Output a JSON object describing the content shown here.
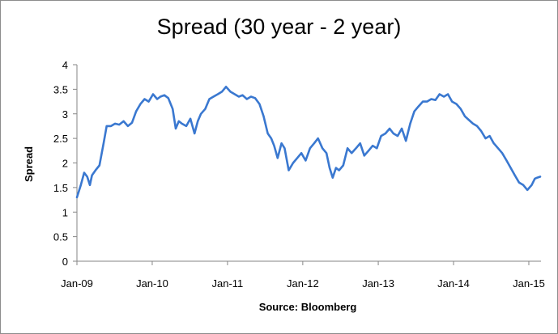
{
  "chart_data": {
    "type": "line",
    "title": "Spread (30 year - 2 year)",
    "xlabel": "Source: Bloomberg",
    "ylabel": "Spread",
    "x_tick_labels": [
      "Jan-09",
      "Jan-10",
      "Jan-11",
      "Jan-12",
      "Jan-13",
      "Jan-14",
      "Jan-15"
    ],
    "y_tick_labels": [
      "0",
      "0.5",
      "1",
      "1.5",
      "2",
      "2.5",
      "3",
      "3.5",
      "4"
    ],
    "ylim": [
      0,
      4
    ],
    "xlim": [
      "2009-01",
      "2015-03"
    ],
    "grid": false,
    "legend": "none",
    "series_color": "#3a78d0",
    "series": [
      {
        "x": [
          "2009-01-01",
          "2009-01-20",
          "2009-02-05",
          "2009-02-20",
          "2009-03-05",
          "2009-03-15",
          "2009-04-01",
          "2009-04-20",
          "2009-05-10",
          "2009-05-25",
          "2009-06-15",
          "2009-07-05",
          "2009-07-25",
          "2009-08-15",
          "2009-09-05",
          "2009-09-25",
          "2009-10-15",
          "2009-11-05",
          "2009-11-25",
          "2009-12-15",
          "2010-01-05",
          "2010-01-25",
          "2010-02-10",
          "2010-03-01",
          "2010-03-20",
          "2010-04-10",
          "2010-04-25",
          "2010-05-10",
          "2010-05-25",
          "2010-06-15",
          "2010-07-05",
          "2010-07-25",
          "2010-08-10",
          "2010-08-25",
          "2010-09-15",
          "2010-10-05",
          "2010-10-25",
          "2010-11-15",
          "2010-12-05",
          "2010-12-25",
          "2011-01-15",
          "2011-02-05",
          "2011-02-25",
          "2011-03-15",
          "2011-04-05",
          "2011-04-25",
          "2011-05-15",
          "2011-06-05",
          "2011-06-25",
          "2011-07-15",
          "2011-08-01",
          "2011-08-15",
          "2011-09-01",
          "2011-09-20",
          "2011-10-05",
          "2011-10-25",
          "2011-11-15",
          "2011-12-05",
          "2011-12-25",
          "2012-01-15",
          "2012-02-05",
          "2012-02-25",
          "2012-03-15",
          "2012-04-05",
          "2012-04-25",
          "2012-05-10",
          "2012-05-25",
          "2012-06-10",
          "2012-06-25",
          "2012-07-15",
          "2012-08-05",
          "2012-08-25",
          "2012-09-15",
          "2012-10-05",
          "2012-10-25",
          "2012-11-15",
          "2012-12-05",
          "2012-12-25",
          "2013-01-15",
          "2013-02-05",
          "2013-02-25",
          "2013-03-15",
          "2013-04-05",
          "2013-04-25",
          "2013-05-15",
          "2013-06-05",
          "2013-06-25",
          "2013-07-15",
          "2013-08-05",
          "2013-08-25",
          "2013-09-15",
          "2013-10-05",
          "2013-10-25",
          "2013-11-15",
          "2013-12-05",
          "2013-12-25",
          "2014-01-15",
          "2014-02-05",
          "2014-02-25",
          "2014-03-15",
          "2014-04-05",
          "2014-04-25",
          "2014-05-15",
          "2014-06-05",
          "2014-06-25",
          "2014-07-15",
          "2014-08-05",
          "2014-08-25",
          "2014-09-15",
          "2014-10-05",
          "2014-10-25",
          "2014-11-15",
          "2014-12-05",
          "2014-12-25",
          "2015-01-15",
          "2015-01-30",
          "2015-02-10",
          "2015-02-25"
        ],
        "values": [
          1.3,
          1.55,
          1.8,
          1.72,
          1.55,
          1.75,
          1.85,
          1.95,
          2.4,
          2.75,
          2.75,
          2.8,
          2.78,
          2.85,
          2.75,
          2.82,
          3.05,
          3.2,
          3.3,
          3.25,
          3.4,
          3.3,
          3.35,
          3.38,
          3.32,
          3.1,
          2.7,
          2.85,
          2.8,
          2.75,
          2.9,
          2.6,
          2.85,
          3.0,
          3.1,
          3.3,
          3.35,
          3.4,
          3.45,
          3.55,
          3.45,
          3.4,
          3.35,
          3.38,
          3.3,
          3.35,
          3.32,
          3.2,
          2.95,
          2.6,
          2.5,
          2.35,
          2.1,
          2.4,
          2.3,
          1.85,
          2.0,
          2.1,
          2.2,
          2.05,
          2.3,
          2.4,
          2.5,
          2.3,
          2.2,
          1.9,
          1.7,
          1.9,
          1.85,
          1.95,
          2.3,
          2.2,
          2.3,
          2.4,
          2.15,
          2.25,
          2.35,
          2.3,
          2.55,
          2.6,
          2.7,
          2.6,
          2.55,
          2.7,
          2.45,
          2.8,
          3.05,
          3.15,
          3.25,
          3.25,
          3.3,
          3.28,
          3.4,
          3.35,
          3.4,
          3.25,
          3.2,
          3.1,
          2.95,
          2.88,
          2.8,
          2.75,
          2.65,
          2.5,
          2.55,
          2.4,
          2.3,
          2.2,
          2.05,
          1.9,
          1.75,
          1.6,
          1.55,
          1.45,
          1.55,
          1.68,
          1.7,
          1.72
        ]
      }
    ]
  }
}
